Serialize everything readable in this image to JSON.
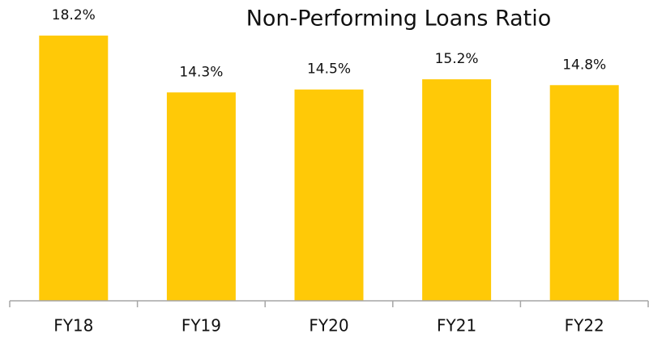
{
  "chart_data": {
    "type": "bar",
    "title": "Non-Performing Loans Ratio",
    "categories": [
      "FY18",
      "FY19",
      "FY20",
      "FY21",
      "FY22"
    ],
    "values": [
      18.2,
      14.3,
      14.5,
      15.2,
      14.8
    ],
    "value_labels": [
      "18.2%",
      "14.3%",
      "14.5%",
      "15.2%",
      "14.8%"
    ],
    "color": "#FFC907"
  }
}
